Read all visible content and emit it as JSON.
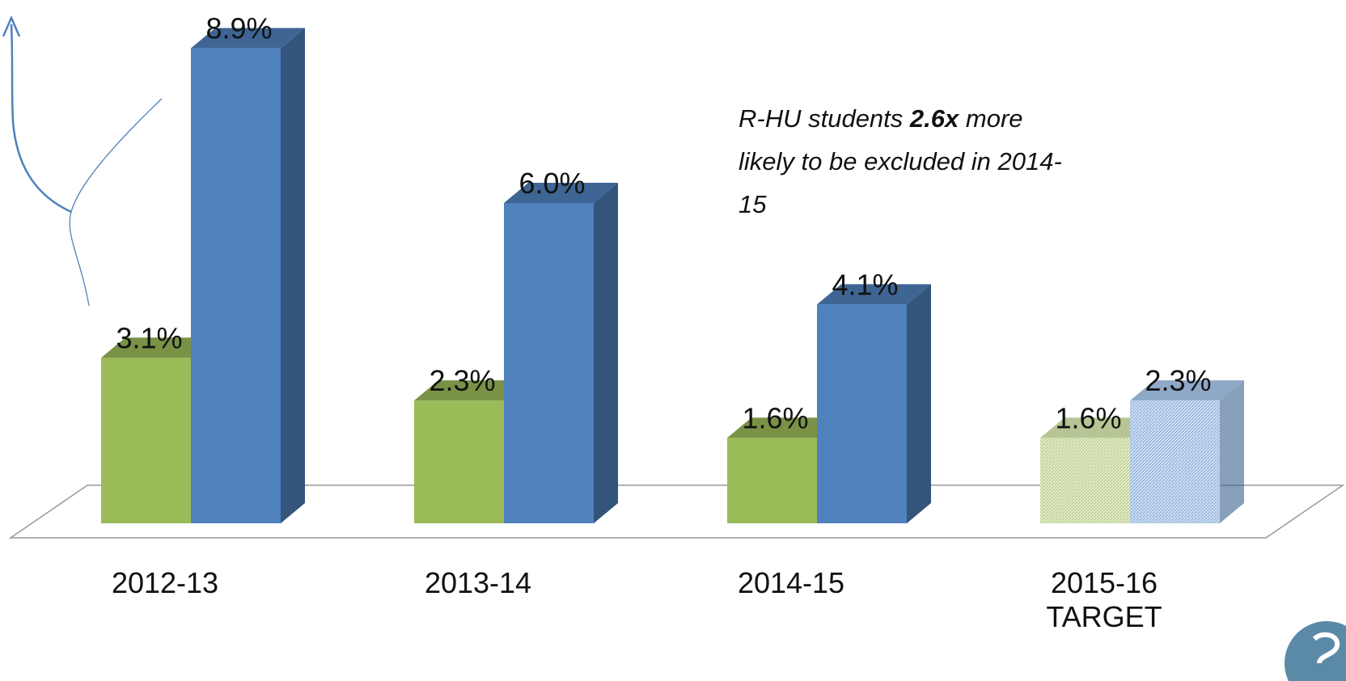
{
  "chart_data": {
    "type": "bar3d",
    "categories": [
      "2012-13",
      "2013-14",
      "2014-15",
      "2015-16\nTARGET"
    ],
    "series": [
      {
        "color": "#9bbb59",
        "values": [
          3.1,
          2.3,
          1.6,
          1.6
        ],
        "value_labels": [
          "3.1%",
          "2.3%",
          "1.6%",
          "1.6%"
        ]
      },
      {
        "color": "#4f81bd",
        "values": [
          8.9,
          6.0,
          4.1,
          2.3
        ],
        "value_labels": [
          "8.9%",
          "6.0%",
          "4.1%",
          "2.3%"
        ]
      }
    ],
    "patterned": [
      3
    ],
    "ylim": [
      0,
      9.5
    ],
    "annotation": {
      "text": "R-HU students",
      "emphasis": "2.6x",
      "rest": "more likely to be excluded in 2014-15"
    }
  }
}
